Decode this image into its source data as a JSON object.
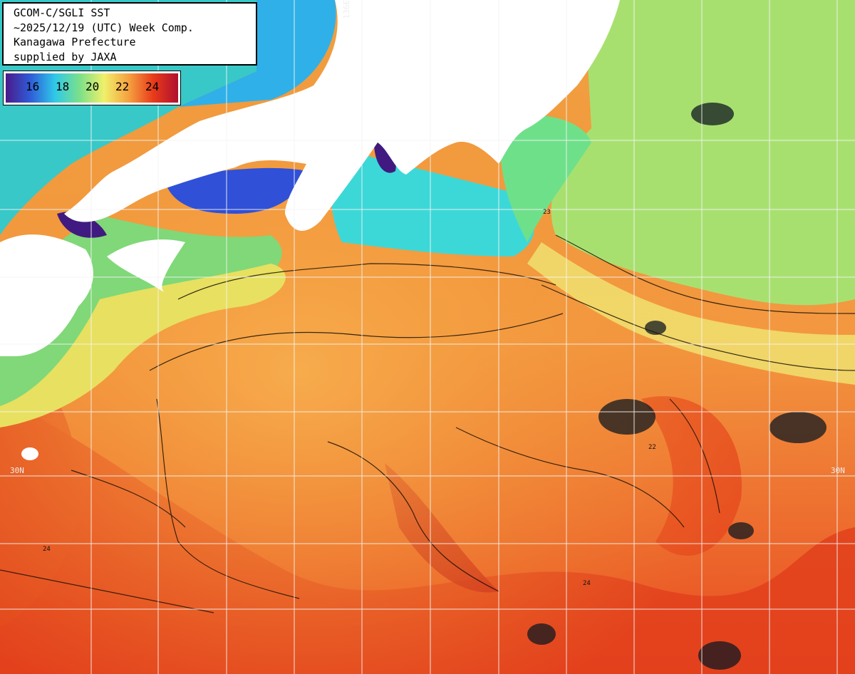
{
  "title": {
    "line1": "GCOM-C/SGLI SST",
    "line2": "~2025/12/19 (UTC) Week Comp.",
    "line3": "Kanagawa Prefecture",
    "line4": "supplied by JAXA"
  },
  "legend": {
    "ticks": [
      "16",
      "18",
      "20",
      "22",
      "24"
    ],
    "colors": [
      "#4a1a8a",
      "#2f5cd8",
      "#2fc9e8",
      "#7be08a",
      "#f0f06a",
      "#f5a040",
      "#e83a1a",
      "#b01030"
    ]
  },
  "grid": {
    "lon_label": "136E",
    "lat_label_left": "30N",
    "lat_label_right": "30N"
  },
  "contours": {
    "labels": [
      "23",
      "22",
      "24",
      "24"
    ]
  }
}
